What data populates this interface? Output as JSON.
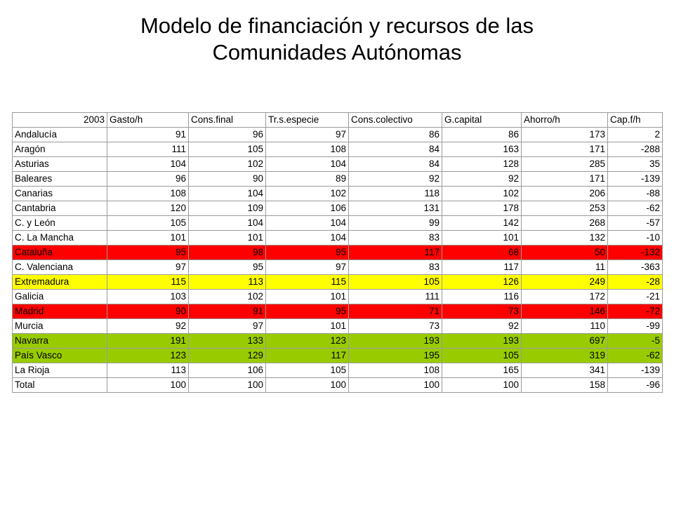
{
  "title_line1": "Modelo de financiación  y recursos de las",
  "title_line2": "Comunidades Autónomas",
  "colors": {
    "red": "#ff0000",
    "yellow": "#ffff00",
    "green": "#99cc00"
  },
  "table": {
    "headers": [
      "2003",
      "Gasto/h",
      "Cons.final",
      "Tr.s.especie",
      "Cons.colectivo",
      "G.capital",
      "Ahorro/h",
      "Cap.f/h"
    ],
    "rows": [
      {
        "name": "Andalucía",
        "values": [
          "91",
          "96",
          "97",
          "86",
          "86",
          "173",
          "2"
        ],
        "highlight": ""
      },
      {
        "name": "Aragón",
        "values": [
          "111",
          "105",
          "108",
          "84",
          "163",
          "171",
          "-288"
        ],
        "highlight": ""
      },
      {
        "name": "Asturias",
        "values": [
          "104",
          "102",
          "104",
          "84",
          "128",
          "285",
          "35"
        ],
        "highlight": ""
      },
      {
        "name": "Baleares",
        "values": [
          "96",
          "90",
          "89",
          "92",
          "92",
          "171",
          "-139"
        ],
        "highlight": ""
      },
      {
        "name": "Canarias",
        "values": [
          "108",
          "104",
          "102",
          "118",
          "102",
          "206",
          "-88"
        ],
        "highlight": ""
      },
      {
        "name": "Cantabria",
        "values": [
          "120",
          "109",
          "106",
          "131",
          "178",
          "253",
          "-62"
        ],
        "highlight": ""
      },
      {
        "name": "C. y León",
        "values": [
          "105",
          "104",
          "104",
          "99",
          "142",
          "268",
          "-57"
        ],
        "highlight": ""
      },
      {
        "name": "C. La Mancha",
        "values": [
          "101",
          "101",
          "104",
          "83",
          "101",
          "132",
          "-10"
        ],
        "highlight": ""
      },
      {
        "name": "Cataluña",
        "values": [
          "95",
          "98",
          "95",
          "117",
          "68",
          "50",
          "-132"
        ],
        "highlight": "red"
      },
      {
        "name": "C. Valenciana",
        "values": [
          "97",
          "95",
          "97",
          "83",
          "117",
          "11",
          "-363"
        ],
        "highlight": ""
      },
      {
        "name": "Extremadura",
        "values": [
          "115",
          "113",
          "115",
          "105",
          "126",
          "249",
          "-28"
        ],
        "highlight": "yellow"
      },
      {
        "name": "Galicia",
        "values": [
          "103",
          "102",
          "101",
          "111",
          "116",
          "172",
          "-21"
        ],
        "highlight": ""
      },
      {
        "name": "Madrid",
        "values": [
          "90",
          "91",
          "95",
          "71",
          "73",
          "146",
          "-72"
        ],
        "highlight": "red"
      },
      {
        "name": "Murcia",
        "values": [
          "92",
          "97",
          "101",
          "73",
          "92",
          "110",
          "-99"
        ],
        "highlight": ""
      },
      {
        "name": "Navarra",
        "values": [
          "191",
          "133",
          "123",
          "193",
          "193",
          "697",
          "-5"
        ],
        "highlight": "green"
      },
      {
        "name": "País Vasco",
        "values": [
          "123",
          "129",
          "117",
          "195",
          "105",
          "319",
          "-62"
        ],
        "highlight": "green"
      },
      {
        "name": "La Rioja",
        "values": [
          "113",
          "106",
          "105",
          "108",
          "165",
          "341",
          "-139"
        ],
        "highlight": ""
      },
      {
        "name": "Total",
        "values": [
          "100",
          "100",
          "100",
          "100",
          "100",
          "158",
          "-96"
        ],
        "highlight": ""
      }
    ]
  }
}
